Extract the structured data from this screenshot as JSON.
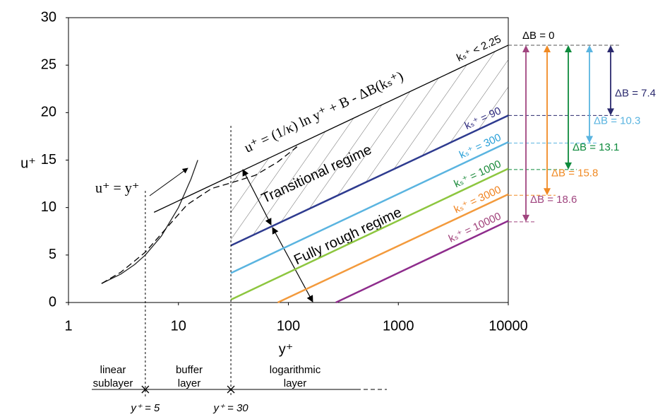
{
  "chart_data": {
    "type": "line",
    "x_label": "y⁺",
    "y_label": "u⁺",
    "xlim": [
      1,
      10000
    ],
    "xticks": [
      1,
      10,
      100,
      1000,
      10000
    ],
    "x_log": true,
    "ylim": [
      0,
      30
    ],
    "yticks": [
      0,
      5,
      10,
      15,
      20,
      25,
      30
    ],
    "grid": false,
    "series": [
      {
        "name": "u⁺ = y⁺",
        "color": "#222222",
        "style": "solid",
        "x": [
          2,
          3,
          4,
          5,
          7,
          10,
          13,
          15
        ],
        "values": [
          2,
          3,
          4,
          5,
          7,
          10,
          13,
          15
        ]
      },
      {
        "name": "u⁺ = (1/κ) ln y⁺ + B - ΔB(kₛ⁺)",
        "color": "#000000",
        "style": "solid",
        "x": [
          6,
          10000
        ],
        "values": [
          9.5,
          27.1
        ]
      },
      {
        "color": "#000000",
        "style": "dashed",
        "x": [
          2,
          3,
          5,
          8,
          12,
          20,
          30,
          50,
          80,
          120
        ],
        "values": [
          2,
          3.2,
          5.3,
          8,
          10.3,
          12,
          12.6,
          13.4,
          14.8,
          16.4
        ]
      },
      {
        "name": "kₛ⁺ = 90",
        "color": "#2e3b8f",
        "label_color": "#2e2a7e",
        "style": "solid",
        "x": [
          30,
          10000
        ],
        "values": [
          6.0,
          19.7
        ]
      },
      {
        "name": "kₛ⁺ = 300",
        "color": "#5ab4e0",
        "label_color": "#2aa0d8",
        "style": "solid",
        "x": [
          30,
          10000
        ],
        "values": [
          3.1,
          16.9
        ]
      },
      {
        "name": "kₛ⁺ = 1000",
        "color": "#8dc63f",
        "label_color": "#1a8a3a",
        "style": "solid",
        "x": [
          30,
          10000
        ],
        "values": [
          0.3,
          14.1
        ]
      },
      {
        "name": "kₛ⁺ = 3000",
        "color": "#f39a3c",
        "label_color": "#f0821e",
        "style": "solid",
        "x": [
          80,
          10000
        ],
        "values": [
          0,
          11.4
        ]
      },
      {
        "name": "kₛ⁺ = 10000",
        "color": "#8e2c8c",
        "label_color": "#a0407a",
        "style": "solid",
        "x": [
          270,
          10000
        ],
        "values": [
          0,
          8.6
        ]
      }
    ],
    "smooth_label": "kₛ⁺ < 2.25",
    "regimes": [
      "Transitional regime",
      "Fully rough regime"
    ],
    "delta_b": {
      "values": [
        0,
        7.4,
        10.3,
        13.1,
        15.8,
        18.6
      ],
      "value_labels": [
        "ΔB = 0",
        "ΔB = 7.4",
        "ΔB = 10.3",
        "ΔB = 13.1",
        "ΔB = 15.8",
        "ΔB = 18.6"
      ],
      "colors": [
        "#000000",
        "#2b2a6e",
        "#5ab4e0",
        "#0d8a3c",
        "#f08a24",
        "#a0457f"
      ]
    },
    "layers": {
      "names": [
        [
          "linear",
          "sublayer"
        ],
        [
          "buffer",
          "layer"
        ],
        [
          "logarithmic",
          "layer"
        ]
      ],
      "bounds": [
        {
          "value": 5,
          "label": "y⁺ = 5"
        },
        {
          "value": 30,
          "label": "y⁺ = 30"
        }
      ]
    }
  }
}
